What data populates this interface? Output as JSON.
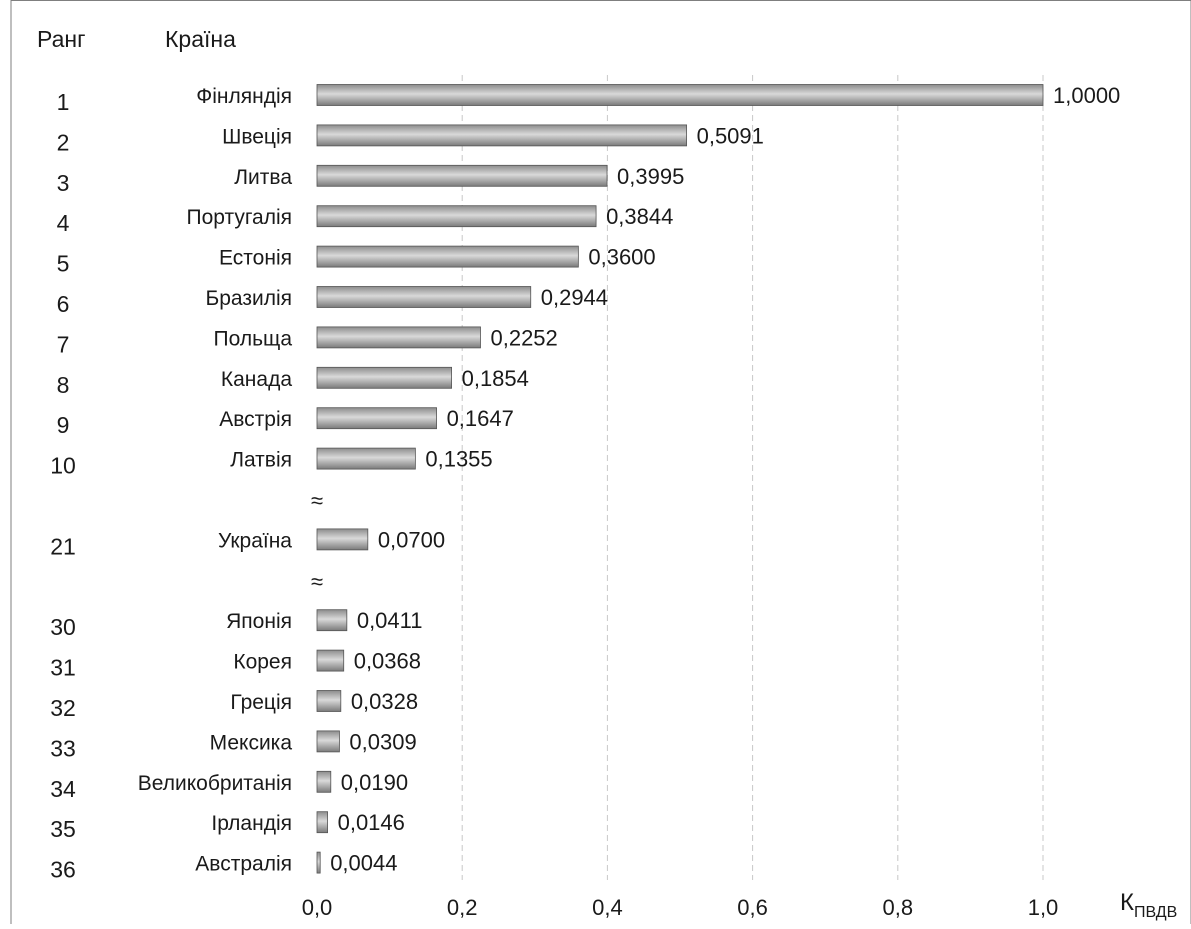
{
  "chart_data": {
    "type": "bar",
    "orientation": "horizontal",
    "title": "",
    "header_rank": "Ранг",
    "header_country": "Країна",
    "xlabel": "К",
    "xlabel_subscript": "ПВДВ",
    "xlim": [
      0,
      1.0
    ],
    "xticks": [
      "0,0",
      "0,2",
      "0,4",
      "0,6",
      "0,8",
      "1,0"
    ],
    "grid": "vertical dashed",
    "break_symbol": "≈",
    "rows": [
      {
        "rank": "1",
        "country": "Фінляндія",
        "value": 1.0,
        "label": "1,0000"
      },
      {
        "rank": "2",
        "country": "Швеція",
        "value": 0.5091,
        "label": "0,5091"
      },
      {
        "rank": "3",
        "country": "Литва",
        "value": 0.3995,
        "label": "0,3995"
      },
      {
        "rank": "4",
        "country": "Португалія",
        "value": 0.3844,
        "label": "0,3844"
      },
      {
        "rank": "5",
        "country": "Естонія",
        "value": 0.36,
        "label": "0,3600"
      },
      {
        "rank": "6",
        "country": "Бразилія",
        "value": 0.2944,
        "label": "0,2944"
      },
      {
        "rank": "7",
        "country": "Польща",
        "value": 0.2252,
        "label": "0,2252"
      },
      {
        "rank": "8",
        "country": "Канада",
        "value": 0.1854,
        "label": "0,1854"
      },
      {
        "rank": "9",
        "country": "Австрія",
        "value": 0.1647,
        "label": "0,1647"
      },
      {
        "rank": "10",
        "country": "Латвія",
        "value": 0.1355,
        "label": "0,1355"
      },
      {
        "break": true
      },
      {
        "rank": "21",
        "country": "Україна",
        "value": 0.07,
        "label": "0,0700"
      },
      {
        "break": true
      },
      {
        "rank": "30",
        "country": "Японія",
        "value": 0.0411,
        "label": "0,0411"
      },
      {
        "rank": "31",
        "country": "Корея",
        "value": 0.0368,
        "label": "0,0368"
      },
      {
        "rank": "32",
        "country": "Греція",
        "value": 0.0328,
        "label": "0,0328"
      },
      {
        "rank": "33",
        "country": "Мексика",
        "value": 0.0309,
        "label": "0,0309"
      },
      {
        "rank": "34",
        "country": "Великобританія",
        "value": 0.019,
        "label": "0,0190"
      },
      {
        "rank": "35",
        "country": "Ірландія",
        "value": 0.0146,
        "label": "0,0146"
      },
      {
        "rank": "36",
        "country": "Австралія",
        "value": 0.0044,
        "label": "0,0044"
      }
    ]
  }
}
